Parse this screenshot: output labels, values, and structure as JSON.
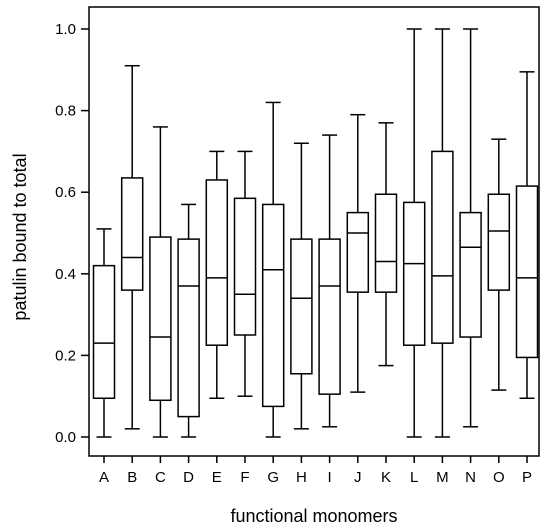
{
  "chart_data": {
    "type": "boxplot",
    "xlabel": "functional monomers",
    "ylabel": "patulin bound to total",
    "ylim": [
      0.0,
      1.0
    ],
    "yticks": [
      "0.0",
      "0.2",
      "0.4",
      "0.6",
      "0.8",
      "1.0"
    ],
    "grid": false,
    "categories": [
      "A",
      "B",
      "C",
      "D",
      "E",
      "F",
      "G",
      "H",
      "I",
      "J",
      "K",
      "L",
      "M",
      "N",
      "O",
      "P"
    ],
    "boxes": [
      {
        "category": "A",
        "min": 0.0,
        "q1": 0.095,
        "median": 0.23,
        "q3": 0.42,
        "max": 0.51
      },
      {
        "category": "B",
        "min": 0.02,
        "q1": 0.36,
        "median": 0.44,
        "q3": 0.635,
        "max": 0.91
      },
      {
        "category": "C",
        "min": 0.0,
        "q1": 0.09,
        "median": 0.245,
        "q3": 0.49,
        "max": 0.76
      },
      {
        "category": "D",
        "min": 0.0,
        "q1": 0.05,
        "median": 0.37,
        "q3": 0.485,
        "max": 0.57
      },
      {
        "category": "E",
        "min": 0.095,
        "q1": 0.225,
        "median": 0.39,
        "q3": 0.63,
        "max": 0.7
      },
      {
        "category": "F",
        "min": 0.1,
        "q1": 0.25,
        "median": 0.35,
        "q3": 0.585,
        "max": 0.7
      },
      {
        "category": "G",
        "min": 0.0,
        "q1": 0.075,
        "median": 0.41,
        "q3": 0.57,
        "max": 0.82
      },
      {
        "category": "H",
        "min": 0.02,
        "q1": 0.155,
        "median": 0.34,
        "q3": 0.485,
        "max": 0.72
      },
      {
        "category": "I",
        "min": 0.025,
        "q1": 0.105,
        "median": 0.37,
        "q3": 0.485,
        "max": 0.74
      },
      {
        "category": "J",
        "min": 0.11,
        "q1": 0.355,
        "median": 0.5,
        "q3": 0.55,
        "max": 0.79
      },
      {
        "category": "K",
        "min": 0.175,
        "q1": 0.355,
        "median": 0.43,
        "q3": 0.595,
        "max": 0.77
      },
      {
        "category": "L",
        "min": 0.0,
        "q1": 0.225,
        "median": 0.425,
        "q3": 0.575,
        "max": 1.0
      },
      {
        "category": "M",
        "min": 0.0,
        "q1": 0.23,
        "median": 0.395,
        "q3": 0.7,
        "max": 1.0
      },
      {
        "category": "N",
        "min": 0.025,
        "q1": 0.245,
        "median": 0.465,
        "q3": 0.55,
        "max": 1.0
      },
      {
        "category": "O",
        "min": 0.115,
        "q1": 0.36,
        "median": 0.505,
        "q3": 0.595,
        "max": 0.73
      },
      {
        "category": "P",
        "min": 0.095,
        "q1": 0.195,
        "median": 0.39,
        "q3": 0.615,
        "max": 0.895
      }
    ]
  }
}
